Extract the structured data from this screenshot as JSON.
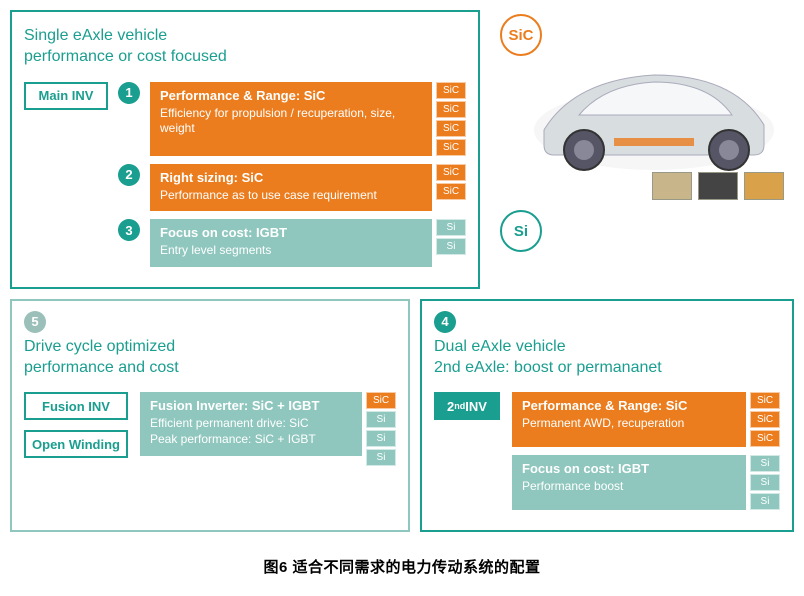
{
  "colors": {
    "teal": "#1a9e8f",
    "teal_light": "#8fc7bf",
    "orange": "#eb7d1e",
    "gray_teal": "#9bbfb9",
    "text_teal": "#1a9e8f"
  },
  "panels": {
    "p1": {
      "border": "#1a9e8f",
      "title": "Single eAxle vehicle\nperformance or cost focused",
      "title_color": "#1a9e8f",
      "left_pill": {
        "label": "Main INV",
        "bg": "#ffffff",
        "border": "#1a9e8f",
        "color": "#1a9e8f"
      },
      "items": [
        {
          "num": "1",
          "num_bg": "#1a9e8f",
          "block_bg": "#eb7d1e",
          "title": "Performance & Range: SiC",
          "desc": "Efficiency for propulsion / recuperation, size, weight",
          "chips": [
            "SiC",
            "SiC",
            "SiC",
            "SiC"
          ],
          "chip_bg": "#eb7d1e"
        },
        {
          "num": "2",
          "num_bg": "#1a9e8f",
          "block_bg": "#eb7d1e",
          "title": "Right sizing: SiC",
          "desc": "Performance as to use case requirement",
          "chips": [
            "SiC",
            "SiC"
          ],
          "chip_bg": "#eb7d1e"
        },
        {
          "num": "3",
          "num_bg": "#1a9e8f",
          "block_bg": "#8fc7bf",
          "title": "Focus on cost: IGBT",
          "desc": "Entry level segments",
          "chips": [
            "Si",
            "Si"
          ],
          "chip_bg": "#8fc7bf"
        }
      ]
    },
    "p4": {
      "border": "#1a9e8f",
      "num": "4",
      "num_bg": "#1a9e8f",
      "title": "Dual eAxle vehicle\n2nd eAxle: boost or permananet",
      "title_color": "#1a9e8f",
      "left_pill": {
        "label_html": "2<sup>nd</sup> INV",
        "bg": "#1a9e8f",
        "border": "#1a9e8f",
        "color": "#ffffff"
      },
      "items": [
        {
          "block_bg": "#eb7d1e",
          "title": "Performance & Range: SiC",
          "desc": "Permanent AWD, recuperation",
          "chips": [
            "SiC",
            "SiC",
            "SiC"
          ],
          "chip_bg": "#eb7d1e"
        },
        {
          "block_bg": "#8fc7bf",
          "title": "Focus on cost: IGBT",
          "desc": "Performance boost",
          "chips": [
            "Si",
            "Si",
            "Si"
          ],
          "chip_bg": "#8fc7bf"
        }
      ]
    },
    "p5": {
      "border": "#8fc7bf",
      "num": "5",
      "num_bg": "#9bbfb9",
      "title": "Drive cycle optimized\nperformance and cost",
      "title_color": "#1a9e8f",
      "left_pills": [
        {
          "label": "Fusion INV",
          "bg": "#ffffff",
          "border": "#1a9e8f",
          "color": "#1a9e8f"
        },
        {
          "label": "Open Winding",
          "bg": "#ffffff",
          "border": "#1a9e8f",
          "color": "#1a9e8f"
        }
      ],
      "item": {
        "block_bg": "#8fc7bf",
        "title": "Fusion Inverter: SiC + IGBT",
        "line1": "Efficient permanent drive: SiC",
        "line2": "Peak performance: SiC + IGBT",
        "chips": [
          "SiC",
          "Si",
          "Si",
          "Si"
        ],
        "chip_bgs": [
          "#eb7d1e",
          "#8fc7bf",
          "#8fc7bf",
          "#8fc7bf"
        ]
      }
    }
  },
  "badges": {
    "sic": "SiC",
    "si": "Si"
  },
  "caption": "图6 适合不同需求的电力传动系统的配置"
}
